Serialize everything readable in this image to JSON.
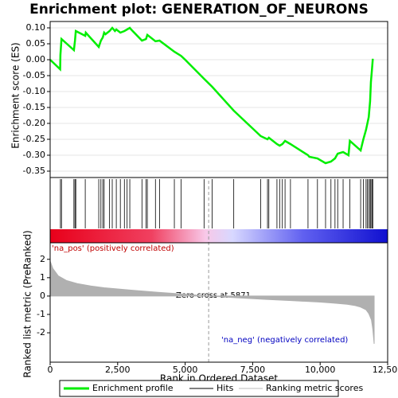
{
  "chart_data": [
    {
      "type": "line",
      "title": "Enrichment plot: GENERATION_OF_NEURONS",
      "ylabel": "Enrichment score (ES)",
      "ylim": [
        -0.37,
        0.12
      ],
      "yticks": [
        {
          "value": 0.1,
          "label": "0.10"
        },
        0.05,
        {
          "value": 0,
          "label": "0.00"
        },
        -0.05,
        {
          "value": -0.1,
          "label": "-0.10"
        },
        -0.15,
        {
          "value": -0.2,
          "label": "-0.20"
        },
        -0.25,
        {
          "value": -0.3,
          "label": "-0.30"
        },
        -0.35
      ],
      "xlim": [
        0,
        12500
      ],
      "grid": true,
      "series": [
        {
          "name": "Enrichment profile",
          "color": "#00ee00",
          "x": [
            0,
            370,
            380,
            420,
            880,
            920,
            950,
            1300,
            1320,
            1800,
            1880,
            1950,
            2000,
            2050,
            2200,
            2300,
            2400,
            2450,
            2600,
            2750,
            2850,
            2950,
            3000,
            3400,
            3550,
            3600,
            3900,
            4050,
            4600,
            4850,
            5000,
            5700,
            6000,
            6800,
            7800,
            8050,
            8100,
            8400,
            8500,
            8600,
            8700,
            8900,
            9550,
            9600,
            9900,
            10200,
            10400,
            10550,
            10650,
            10850,
            11050,
            11100,
            11500,
            11600,
            11700,
            11800,
            11850,
            11880,
            11920,
            11950
          ],
          "values": [
            0,
            -0.03,
            0.015,
            0.065,
            0.03,
            0.06,
            0.09,
            0.075,
            0.085,
            0.04,
            0.06,
            0.07,
            0.085,
            0.08,
            0.09,
            0.1,
            0.09,
            0.095,
            0.085,
            0.09,
            0.095,
            0.1,
            0.095,
            0.06,
            0.065,
            0.078,
            0.058,
            0.06,
            0.025,
            0.012,
            0,
            -0.06,
            -0.085,
            -0.16,
            -0.24,
            -0.25,
            -0.245,
            -0.265,
            -0.27,
            -0.265,
            -0.255,
            -0.265,
            -0.3,
            -0.305,
            -0.31,
            -0.325,
            -0.32,
            -0.31,
            -0.295,
            -0.29,
            -0.3,
            -0.255,
            -0.285,
            -0.25,
            -0.22,
            -0.18,
            -0.13,
            -0.07,
            -0.03,
            0.003
          ]
        },
        {
          "name": "Hits",
          "color": "#000000",
          "x": [
            380,
            420,
            880,
            920,
            950,
            1300,
            1800,
            1880,
            1950,
            2000,
            2200,
            2300,
            2450,
            2600,
            2750,
            2850,
            2950,
            3400,
            3550,
            3600,
            3900,
            4050,
            4600,
            4850,
            5700,
            6000,
            6800,
            7800,
            8050,
            8100,
            8400,
            8500,
            8600,
            8700,
            8900,
            9550,
            9900,
            10200,
            10400,
            10550,
            10650,
            10850,
            11100,
            11500,
            11600,
            11700,
            11750,
            11800,
            11850,
            11880,
            11920,
            11950
          ]
        }
      ]
    },
    {
      "type": "area",
      "ylabel": "Ranked list metric (PreRanked)",
      "xlabel": "Rank in Ordered Dataset",
      "xlim": [
        0,
        12500
      ],
      "xticks": [
        0,
        {
          "value": 2500,
          "label": "2,500"
        },
        {
          "value": 5000,
          "label": "5,000"
        },
        {
          "value": 7500,
          "label": "7,500"
        },
        {
          "value": 10000,
          "label": "10,000"
        },
        {
          "value": 12500,
          "label": "12,500"
        }
      ],
      "ylim": [
        -3.6,
        2.9
      ],
      "yticks": [
        2,
        1,
        0,
        -1,
        -2
      ],
      "zero_cross": 5871,
      "annotations": [
        "'na_pos' (positively correlated)",
        "'na_neg' (negatively correlated)",
        "Zero cross at 5871"
      ],
      "series": [
        {
          "name": "Ranking metric scores",
          "color": "#b0b0b0",
          "x": [
            0,
            100,
            300,
            600,
            1000,
            1500,
            2000,
            3000,
            4000,
            5000,
            5871,
            7000,
            8000,
            9000,
            10000,
            10500,
            11000,
            11300,
            11500,
            11700,
            11800,
            11900,
            11950,
            12000
          ],
          "values": [
            1.9,
            1.5,
            1.1,
            0.85,
            0.68,
            0.55,
            0.45,
            0.32,
            0.2,
            0.1,
            0,
            -0.1,
            -0.18,
            -0.25,
            -0.33,
            -0.38,
            -0.45,
            -0.52,
            -0.6,
            -0.75,
            -0.95,
            -1.3,
            -1.8,
            -2.6
          ]
        }
      ]
    }
  ]
}
